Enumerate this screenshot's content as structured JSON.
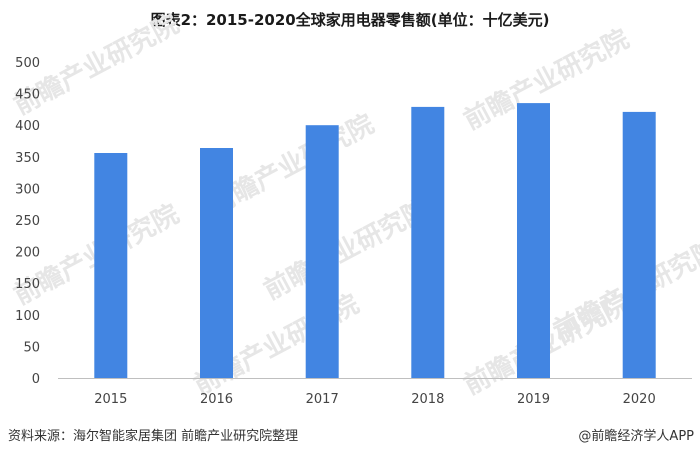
{
  "title": "图表2：2015-2020全球家用电器零售额(单位：十亿美元)",
  "source": "资料来源：海尔智能家居集团 前瞻产业研究院整理",
  "brand": "@前瞻经济学人APP",
  "watermark": {
    "text": "前瞻产业研究院",
    "color": "#e6e6e6"
  },
  "colors": {
    "bar": "#4285e2",
    "axis": "#bfbfbf",
    "tick_text": "#444444"
  },
  "chart_data": {
    "type": "bar",
    "title": "图表2：2015-2020全球家用电器零售额(单位：十亿美元)",
    "categories": [
      "2015",
      "2016",
      "2017",
      "2018",
      "2019",
      "2020"
    ],
    "values": [
      356,
      364,
      400,
      429,
      435,
      421
    ],
    "ylim": [
      0,
      500
    ],
    "yticks": [
      0,
      50,
      100,
      150,
      200,
      250,
      300,
      350,
      400,
      450,
      500
    ],
    "xlabel": "",
    "ylabel": "",
    "grid": false,
    "legend": "none"
  }
}
